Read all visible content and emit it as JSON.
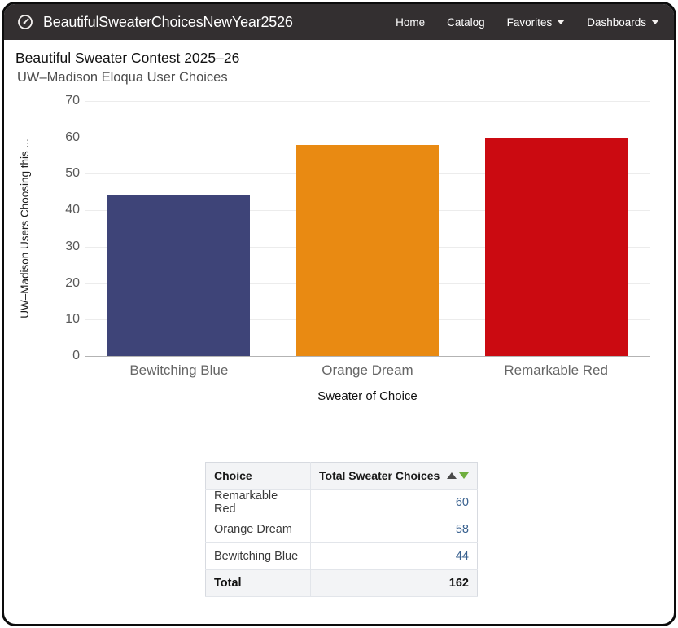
{
  "navbar": {
    "title": "BeautifulSweaterChoicesNewYear2526",
    "items": [
      {
        "label": "Home",
        "has_dropdown": false
      },
      {
        "label": "Catalog",
        "has_dropdown": false
      },
      {
        "label": "Favorites",
        "has_dropdown": true
      },
      {
        "label": "Dashboards",
        "has_dropdown": true
      }
    ]
  },
  "chart": {
    "title": "Beautiful Sweater Contest 2025–26",
    "subtitle": "UW–Madison Eloqua User Choices",
    "y_axis_label": "UW–Madison Users Choosing this ...",
    "x_axis_label": "Sweater of Choice"
  },
  "chart_data": {
    "type": "bar",
    "title": "Beautiful Sweater Contest 2025–26",
    "subtitle": "UW–Madison Eloqua User Choices",
    "categories": [
      "Bewitching Blue",
      "Orange Dream",
      "Remarkable Red"
    ],
    "values": [
      44,
      58,
      60
    ],
    "colors": [
      "#3e4478",
      "#e98a12",
      "#cb0a11"
    ],
    "xlabel": "Sweater of Choice",
    "ylabel": "UW–Madison Users Choosing this ...",
    "ylim": [
      0,
      70
    ],
    "ytick_step": 10,
    "grid": true,
    "legend": "none"
  },
  "table": {
    "headers": [
      "Choice",
      "Total Sweater Choices"
    ],
    "sort": {
      "ascending_icon_color": "#4a4a4a",
      "descending_icon_color": "#6fae3e",
      "active": "descending"
    },
    "rows": [
      {
        "choice": "Remarkable Red",
        "value": "60"
      },
      {
        "choice": "Orange Dream",
        "value": "58"
      },
      {
        "choice": "Bewitching Blue",
        "value": "44"
      }
    ],
    "total_label": "Total",
    "total_value": "162",
    "value_color": "#39618f"
  }
}
